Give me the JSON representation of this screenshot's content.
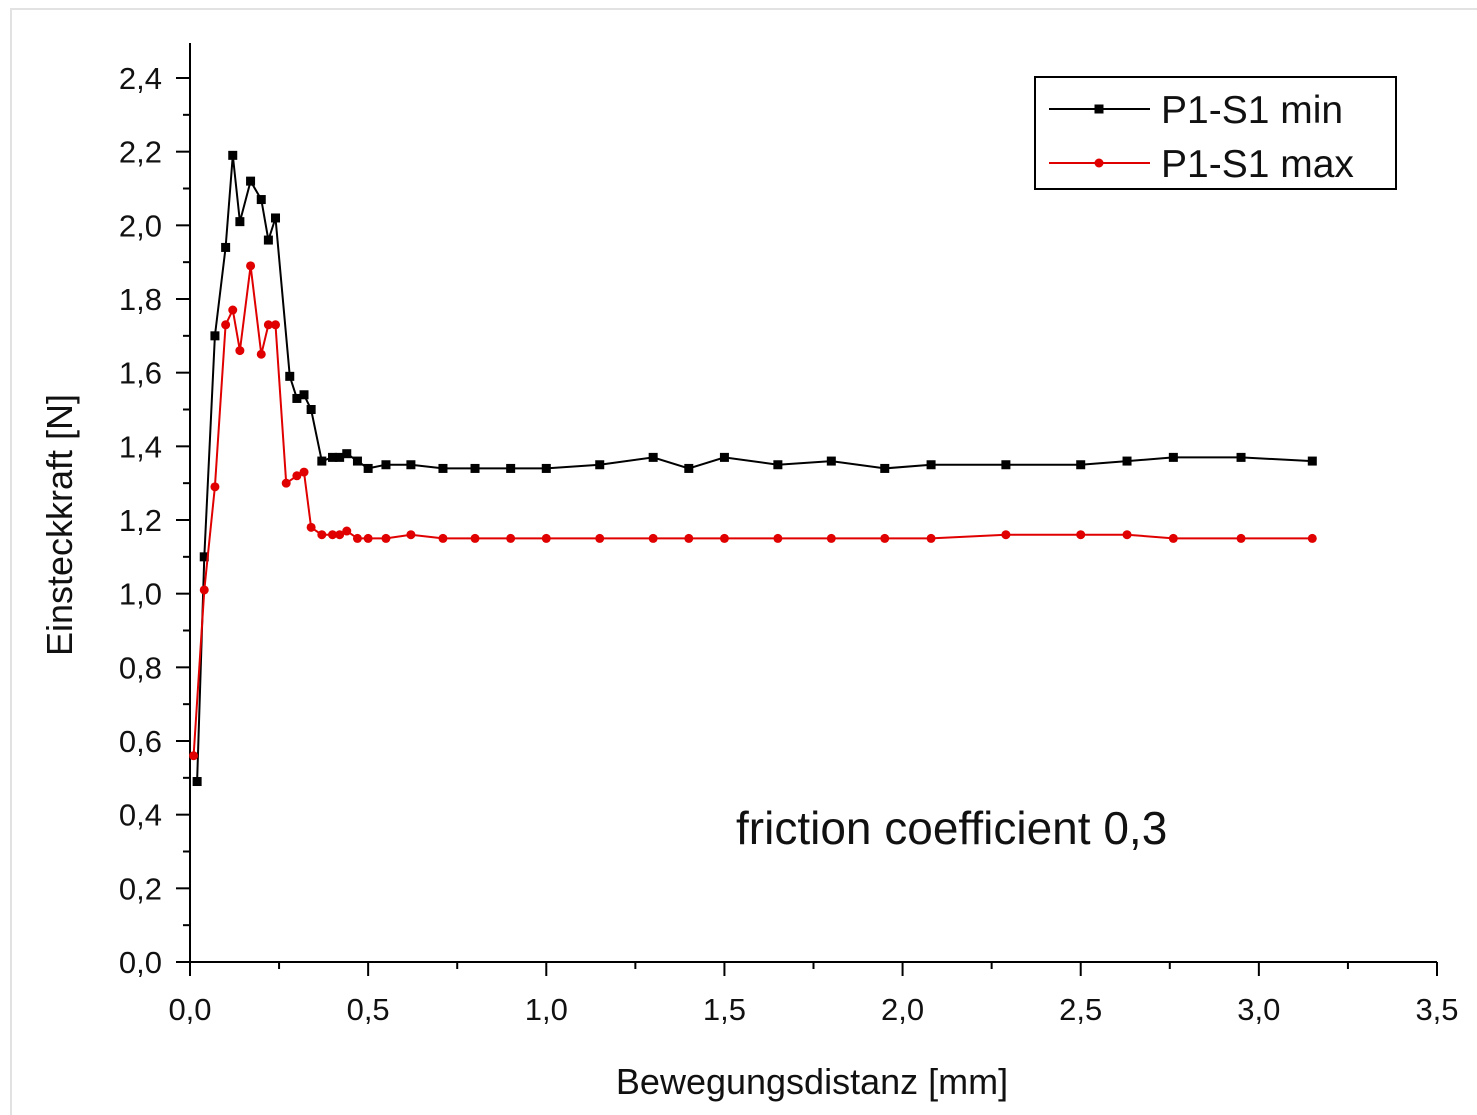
{
  "chart_data": {
    "type": "line",
    "xlabel": "Bewegungsdistanz [mm]",
    "ylabel": "Einsteckkraft [N]",
    "xlim": [
      0,
      3.5
    ],
    "ylim": [
      0,
      2.5
    ],
    "x_ticks": [
      0,
      0.5,
      1.0,
      1.5,
      2.0,
      2.5,
      3.0,
      3.5
    ],
    "x_tick_labels": [
      "0,0",
      "0,5",
      "1,0",
      "1,5",
      "2,0",
      "2,5",
      "3,0",
      "3,5"
    ],
    "y_ticks": [
      0,
      0.2,
      0.4,
      0.6,
      0.8,
      1.0,
      1.2,
      1.4,
      1.6,
      1.8,
      2.0,
      2.2,
      2.4
    ],
    "y_tick_labels": [
      "0,0",
      "0,2",
      "0,4",
      "0,6",
      "0,8",
      "1,0",
      "1,2",
      "1,4",
      "1,6",
      "1,8",
      "2,0",
      "2,2",
      "2,4"
    ],
    "grid": false,
    "legend_position": "top-right",
    "annotation": "friction coefficient 0,3",
    "series": [
      {
        "name": "P1-S1 min",
        "color": "#000000",
        "marker": "square",
        "x": [
          0.02,
          0.04,
          0.07,
          0.1,
          0.12,
          0.14,
          0.17,
          0.2,
          0.22,
          0.24,
          0.28,
          0.3,
          0.32,
          0.34,
          0.37,
          0.4,
          0.42,
          0.44,
          0.47,
          0.5,
          0.55,
          0.62,
          0.71,
          0.8,
          0.9,
          1.0,
          1.15,
          1.3,
          1.4,
          1.5,
          1.65,
          1.8,
          1.95,
          2.08,
          2.29,
          2.5,
          2.63,
          2.76,
          2.95,
          3.15
        ],
        "y": [
          0.49,
          1.1,
          1.7,
          1.94,
          2.19,
          2.01,
          2.12,
          2.07,
          1.96,
          2.02,
          1.59,
          1.53,
          1.54,
          1.5,
          1.36,
          1.37,
          1.37,
          1.38,
          1.36,
          1.34,
          1.35,
          1.35,
          1.34,
          1.34,
          1.34,
          1.34,
          1.35,
          1.37,
          1.34,
          1.37,
          1.35,
          1.36,
          1.34,
          1.35,
          1.35,
          1.35,
          1.36,
          1.37,
          1.37,
          1.36
        ]
      },
      {
        "name": "P1-S1 max",
        "color": "#e00000",
        "marker": "circle",
        "x": [
          0.01,
          0.04,
          0.07,
          0.1,
          0.12,
          0.14,
          0.17,
          0.2,
          0.22,
          0.24,
          0.27,
          0.3,
          0.32,
          0.34,
          0.37,
          0.4,
          0.42,
          0.44,
          0.47,
          0.5,
          0.55,
          0.62,
          0.71,
          0.8,
          0.9,
          1.0,
          1.15,
          1.3,
          1.4,
          1.5,
          1.65,
          1.8,
          1.95,
          2.08,
          2.29,
          2.5,
          2.63,
          2.76,
          2.95,
          3.15
        ],
        "y": [
          0.56,
          1.01,
          1.29,
          1.73,
          1.77,
          1.66,
          1.89,
          1.65,
          1.73,
          1.73,
          1.3,
          1.32,
          1.33,
          1.18,
          1.16,
          1.16,
          1.16,
          1.17,
          1.15,
          1.15,
          1.15,
          1.16,
          1.15,
          1.15,
          1.15,
          1.15,
          1.15,
          1.15,
          1.15,
          1.15,
          1.15,
          1.15,
          1.15,
          1.15,
          1.16,
          1.16,
          1.16,
          1.15,
          1.15,
          1.15
        ]
      }
    ]
  }
}
